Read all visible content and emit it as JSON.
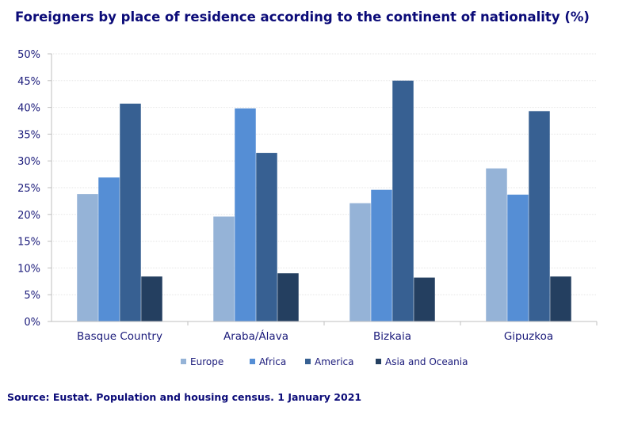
{
  "chart_data": {
    "type": "bar",
    "title": "Foreigners by place of residence according to the continent of nationality (%)",
    "categories": [
      "Basque Country",
      "Araba/Álava",
      "Bizkaia",
      "Gipuzkoa"
    ],
    "series": [
      {
        "name": "Europe",
        "color": "#95b3d7",
        "values": [
          23.8,
          19.6,
          22.1,
          28.6
        ]
      },
      {
        "name": "Africa",
        "color": "#558ed5",
        "values": [
          26.9,
          39.8,
          24.6,
          23.7
        ]
      },
      {
        "name": "America",
        "color": "#376092",
        "values": [
          40.7,
          31.5,
          45.0,
          39.3
        ]
      },
      {
        "name": "Asia and Oceania",
        "color": "#243f60",
        "values": [
          8.4,
          9.0,
          8.2,
          8.4
        ]
      }
    ],
    "ylim": [
      0,
      50
    ],
    "yticks": [
      "0%",
      "5%",
      "10%",
      "15%",
      "20%",
      "25%",
      "30%",
      "35%",
      "40%",
      "45%",
      "50%"
    ],
    "xlabel": "",
    "ylabel": "",
    "legend_position": "bottom",
    "source": "Source: Eustat. Population and housing census. 1 January 2021"
  }
}
